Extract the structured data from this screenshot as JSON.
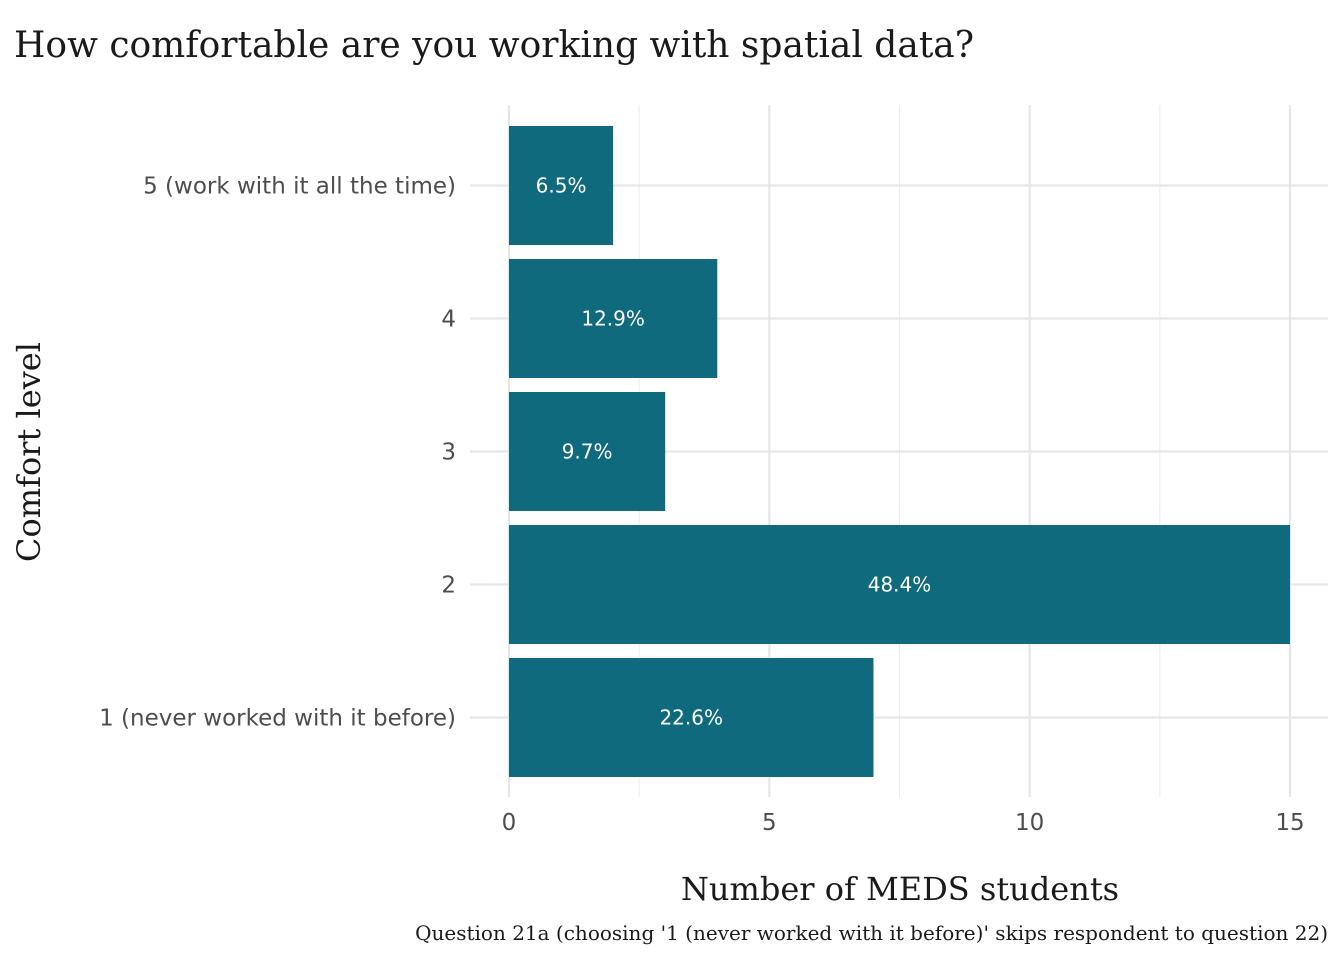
{
  "chart_data": {
    "type": "bar",
    "orientation": "horizontal",
    "title": "How comfortable are you working with spatial data?",
    "xlabel": "Number of MEDS students",
    "ylabel": "Comfort level",
    "caption": "Question 21a (choosing '1 (never worked with it before)' skips respondent to question 22)",
    "categories": [
      "1 (never worked with it before)",
      "2",
      "3",
      "4",
      "5 (work with it all the time)"
    ],
    "values": [
      7,
      15,
      3,
      4,
      2
    ],
    "labels": [
      "22.6%",
      "48.4%",
      "9.7%",
      "12.9%",
      "6.5%"
    ],
    "xlim": [
      0,
      15
    ],
    "xticks": [
      0,
      5,
      10,
      15
    ],
    "grid": true,
    "bar_color": "#106a7e"
  }
}
